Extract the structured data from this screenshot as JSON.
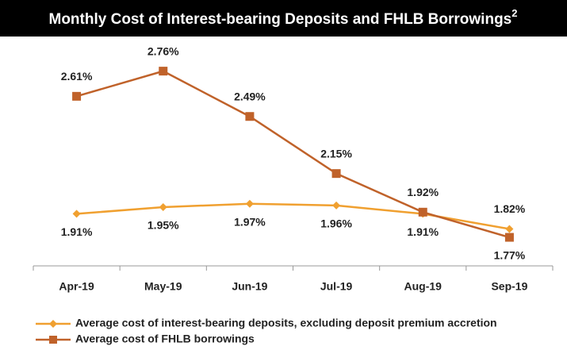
{
  "chart_data": {
    "type": "line",
    "title": "Monthly Cost of Interest-bearing Deposits and FHLB Borrowings",
    "title_footnote": "2",
    "categories": [
      "Apr-19",
      "May-19",
      "Jun-19",
      "Jul-19",
      "Aug-19",
      "Sep-19"
    ],
    "series": [
      {
        "name": "Average cost of interest-bearing deposits, excluding deposit premium accretion",
        "color": "#f0a030",
        "marker": "diamond",
        "values": [
          1.91,
          1.95,
          1.97,
          1.96,
          1.91,
          1.82
        ],
        "value_labels": [
          "1.91%",
          "1.95%",
          "1.97%",
          "1.96%",
          "1.91%",
          "1.82%"
        ]
      },
      {
        "name": "Average cost of FHLB borrowings",
        "color": "#c0622a",
        "marker": "square",
        "values": [
          2.61,
          2.76,
          2.49,
          2.15,
          1.92,
          1.77
        ],
        "value_labels": [
          "2.61%",
          "2.76%",
          "2.49%",
          "2.15%",
          "1.92%",
          "1.77%"
        ]
      }
    ],
    "ylim": [
      1.6,
      2.9
    ]
  }
}
